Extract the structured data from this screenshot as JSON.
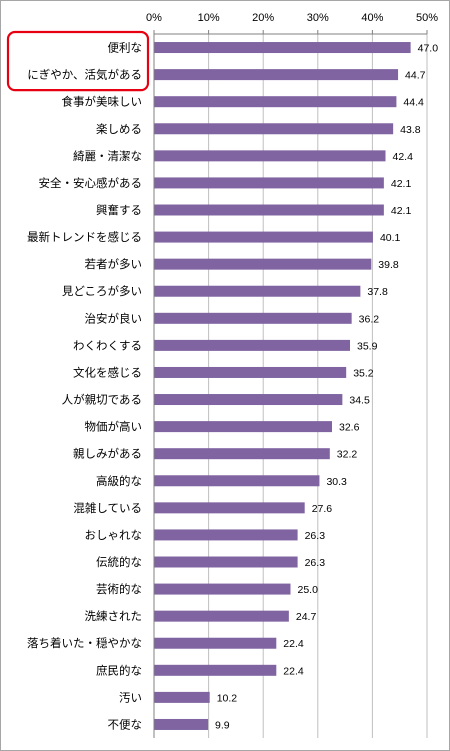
{
  "chart_data": {
    "type": "bar",
    "orientation": "horizontal",
    "categories": [
      "便利な",
      "にぎやか、活気がある",
      "食事が美味しい",
      "楽しめる",
      "綺麗・清潔な",
      "安全・安心感がある",
      "興奮する",
      "最新トレンドを感じる",
      "若者が多い",
      "見どころが多い",
      "治安が良い",
      "わくわくする",
      "文化を感じる",
      "人が親切である",
      "物価が高い",
      "親しみがある",
      "高級的な",
      "混雑している",
      "おしゃれな",
      "伝統的な",
      "芸術的な",
      "洗練された",
      "落ち着いた・穏やかな",
      "庶民的な",
      "汚い",
      "不便な"
    ],
    "values": [
      47.0,
      44.7,
      44.4,
      43.8,
      42.4,
      42.1,
      42.1,
      40.1,
      39.8,
      37.8,
      36.2,
      35.9,
      35.2,
      34.5,
      32.6,
      32.2,
      30.3,
      27.6,
      26.3,
      26.3,
      25.0,
      24.7,
      22.4,
      22.4,
      10.2,
      9.9
    ],
    "value_labels": [
      "47.0",
      "44.7",
      "44.4",
      "43.8",
      "42.4",
      "42.1",
      "42.1",
      "40.1",
      "39.8",
      "37.8",
      "36.2",
      "35.9",
      "35.2",
      "34.5",
      "32.6",
      "32.2",
      "30.3",
      "27.6",
      "26.3",
      "26.3",
      "25.0",
      "24.7",
      "22.4",
      "22.4",
      "10.2",
      "9.9"
    ],
    "x_ticks": [
      "0%",
      "10%",
      "20%",
      "30%",
      "40%",
      "50%"
    ],
    "xlim": [
      0,
      50
    ],
    "xaxis_position": "top",
    "grid": true,
    "legend": "none",
    "bar_color": "#8064a2",
    "highlighted_categories": [
      "便利な",
      "にぎやか、活気がある"
    ],
    "highlight_color": "#e60012"
  }
}
